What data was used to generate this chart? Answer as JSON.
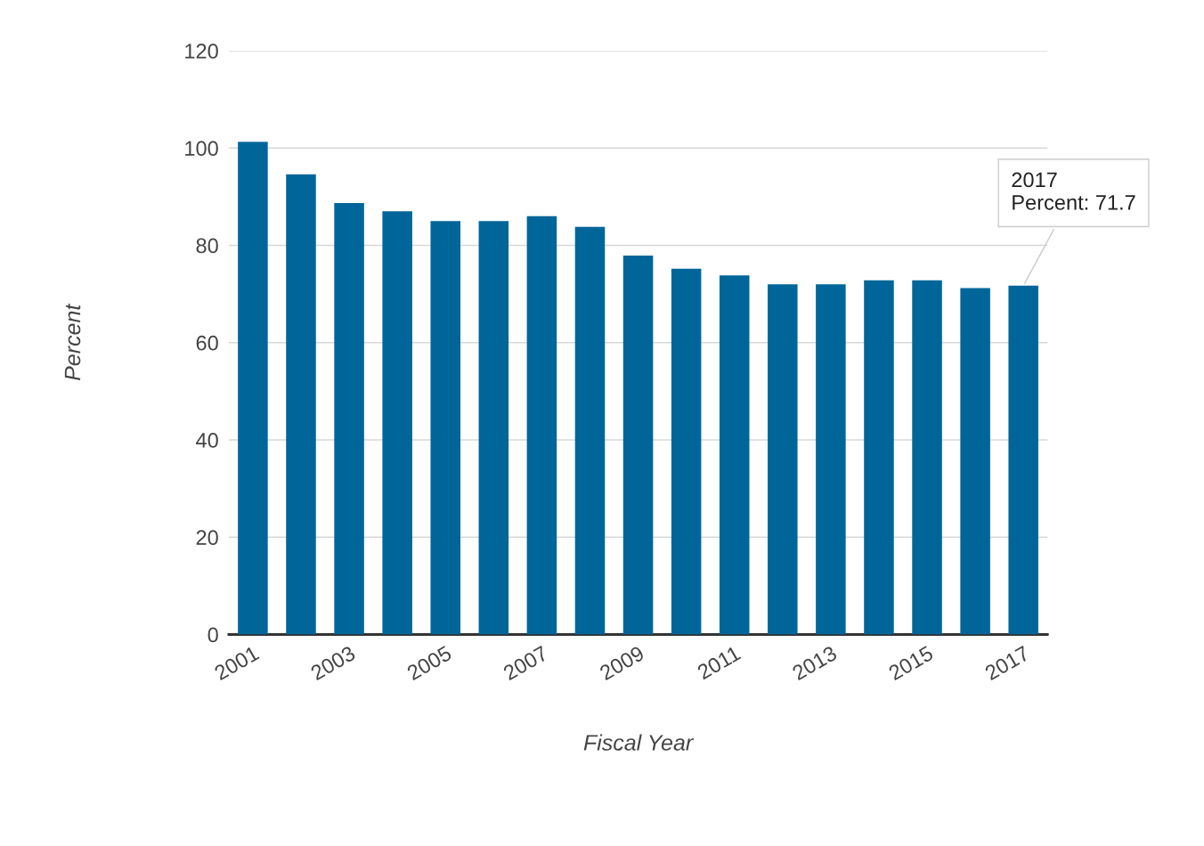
{
  "chart_data": {
    "type": "bar",
    "xlabel": "Fiscal Year",
    "ylabel": "Percent",
    "categories": [
      "2001",
      null,
      "2003",
      null,
      "2005",
      null,
      "2007",
      null,
      "2009",
      null,
      "2011",
      null,
      "2013",
      null,
      "2015",
      null,
      "2017"
    ],
    "series": [
      {
        "color": "#006699",
        "values": [
          101.3,
          94.6,
          88.7,
          87.0,
          85.0,
          85.0,
          86.0,
          83.8,
          77.9,
          75.2,
          73.8,
          72.0,
          72.0,
          72.8,
          72.8,
          71.2,
          71.7
        ]
      }
    ],
    "ylim": [
      0,
      120
    ],
    "yticks": [
      0,
      20,
      40,
      60,
      80,
      100,
      120
    ],
    "grid": "y",
    "annotations": [
      {
        "text": "2017\nPercent: 71.7",
        "x": "2017",
        "y": 71.7
      }
    ]
  }
}
